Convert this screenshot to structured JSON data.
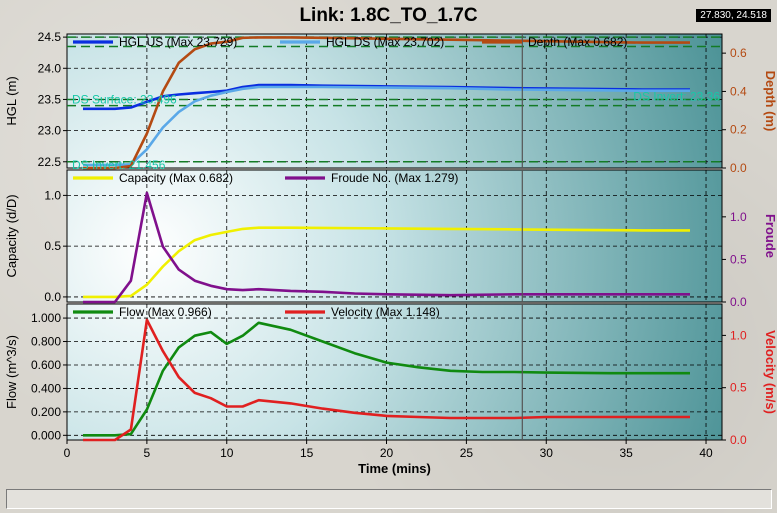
{
  "window": {
    "title": "Link: 1.8C_TO_1.7C",
    "coordinate_readout": "27.830, 24.518"
  },
  "colors": {
    "hgl_us": "#0a2ee0",
    "hgl_ds": "#5aa8e8",
    "depth": "#b44a12",
    "capacity": "#f0f000",
    "froude": "#80108c",
    "flow": "#108a10",
    "velocity": "#e02020",
    "reference": "#137b25",
    "annotation_text": "#18c8a8",
    "cursor": "#555555"
  },
  "chart_data": [
    {
      "type": "line",
      "panel": "top",
      "ylabel": "HGL (m)",
      "y2label": "Depth (m)",
      "ylim": [
        22.4,
        24.55
      ],
      "y2lim": [
        0,
        0.7
      ],
      "yticks": [
        "22.5",
        "23.0",
        "23.5",
        "24.0",
        "24.5"
      ],
      "y2ticks": [
        "0.0",
        "0.2",
        "0.4",
        "0.6"
      ],
      "legend": [
        {
          "key": "hgl_us",
          "label": "HGL US (Max 23.729)"
        },
        {
          "key": "hgl_ds",
          "label": "HGL DS (Max 23.702)"
        },
        {
          "key": "depth",
          "label": "Depth (Max 0.682)"
        }
      ],
      "annotations": [
        {
          "text": "DS Surface: 23.496",
          "side": "left",
          "y": 23.496
        },
        {
          "text": "DS Invert: 21.456",
          "side": "left",
          "y": 22.45
        },
        {
          "text": "DS Invert: 23.36",
          "side": "right",
          "y": 23.55
        }
      ],
      "reference_lines": [
        24.5,
        24.35,
        23.5,
        23.4,
        22.5
      ],
      "series": [
        {
          "key": "hgl_us",
          "axis": "left",
          "x": [
            1,
            3,
            4,
            5,
            6,
            7,
            8,
            9,
            10,
            11,
            12,
            14,
            16,
            20,
            24,
            28,
            32,
            36,
            39
          ],
          "y": [
            23.35,
            23.35,
            23.37,
            23.46,
            23.55,
            23.58,
            23.6,
            23.62,
            23.64,
            23.7,
            23.73,
            23.73,
            23.72,
            23.71,
            23.7,
            23.68,
            23.67,
            23.66,
            23.66
          ]
        },
        {
          "key": "hgl_ds",
          "axis": "left",
          "x": [
            1,
            3,
            4,
            5,
            6,
            7,
            8,
            9,
            10,
            11,
            12,
            14,
            16,
            20,
            24,
            28,
            32,
            36,
            39
          ],
          "y": [
            22.45,
            22.45,
            22.46,
            22.7,
            23.05,
            23.3,
            23.47,
            23.56,
            23.62,
            23.67,
            23.7,
            23.7,
            23.7,
            23.69,
            23.68,
            23.66,
            23.65,
            23.64,
            23.64
          ]
        },
        {
          "key": "depth",
          "axis": "right",
          "x": [
            1,
            3,
            4,
            5,
            6,
            7,
            8,
            9,
            10,
            11,
            12,
            14,
            16,
            20,
            24,
            28,
            32,
            36,
            39
          ],
          "y": [
            0,
            0,
            0.01,
            0.18,
            0.4,
            0.55,
            0.62,
            0.65,
            0.66,
            0.68,
            0.682,
            0.682,
            0.68,
            0.675,
            0.67,
            0.665,
            0.66,
            0.655,
            0.655
          ]
        }
      ]
    },
    {
      "type": "line",
      "panel": "middle",
      "ylabel": "Capacity (d/D)",
      "y2label": "Froude",
      "ylim": [
        -0.05,
        1.25
      ],
      "y2lim": [
        0,
        1.55
      ],
      "yticks": [
        "0.0",
        "0.5",
        "1.0"
      ],
      "y2ticks": [
        "0.0",
        "0.5",
        "1.0"
      ],
      "legend": [
        {
          "key": "capacity",
          "label": "Capacity (Max 0.682)"
        },
        {
          "key": "froude",
          "label": "Froude No. (Max 1.279)"
        }
      ],
      "series": [
        {
          "key": "capacity",
          "axis": "left",
          "x": [
            1,
            3,
            4,
            5,
            6,
            7,
            8,
            9,
            10,
            11,
            12,
            14,
            16,
            20,
            24,
            28,
            32,
            36,
            39
          ],
          "y": [
            0,
            0,
            0.01,
            0.12,
            0.3,
            0.45,
            0.56,
            0.61,
            0.64,
            0.67,
            0.682,
            0.682,
            0.68,
            0.675,
            0.67,
            0.665,
            0.66,
            0.655,
            0.655
          ]
        },
        {
          "key": "froude",
          "axis": "right",
          "x": [
            1,
            3,
            4,
            5,
            6,
            7,
            8,
            9,
            10,
            11,
            12,
            14,
            16,
            18,
            20,
            24,
            28,
            32,
            36,
            39
          ],
          "y": [
            0,
            0,
            0.25,
            1.28,
            0.65,
            0.38,
            0.25,
            0.19,
            0.15,
            0.14,
            0.15,
            0.13,
            0.12,
            0.1,
            0.09,
            0.08,
            0.09,
            0.09,
            0.09,
            0.09
          ]
        }
      ]
    },
    {
      "type": "line",
      "panel": "bottom",
      "xlabel": "Time (mins)",
      "ylabel": "Flow (m^3/s)",
      "y2label": "Velocity (m/s)",
      "xlim": [
        0,
        41
      ],
      "xticks": [
        "0",
        "5",
        "10",
        "15",
        "20",
        "25",
        "30",
        "35",
        "40"
      ],
      "ylim": [
        -0.04,
        1.12
      ],
      "y2lim": [
        0,
        1.3
      ],
      "yticks": [
        "0.000",
        "0.200",
        "0.400",
        "0.600",
        "0.800",
        "1.000"
      ],
      "y2ticks": [
        "0.0",
        "0.5",
        "1.0"
      ],
      "legend": [
        {
          "key": "flow",
          "label": "Flow (Max 0.966)"
        },
        {
          "key": "velocity",
          "label": "Velocity (Max 1.148)"
        }
      ],
      "cursor_x": 28.5,
      "series": [
        {
          "key": "flow",
          "axis": "left",
          "x": [
            1,
            3,
            4,
            5,
            6,
            7,
            8,
            9,
            10,
            11,
            12,
            14,
            16,
            18,
            20,
            22,
            24,
            26,
            28,
            30,
            34,
            39
          ],
          "y": [
            0,
            0,
            0.01,
            0.22,
            0.55,
            0.75,
            0.85,
            0.88,
            0.78,
            0.85,
            0.96,
            0.9,
            0.8,
            0.7,
            0.62,
            0.58,
            0.55,
            0.54,
            0.54,
            0.535,
            0.53,
            0.53
          ]
        },
        {
          "key": "velocity",
          "axis": "right",
          "x": [
            1,
            3,
            4,
            5,
            6,
            7,
            8,
            9,
            10,
            11,
            12,
            14,
            16,
            18,
            20,
            22,
            24,
            26,
            28,
            30,
            34,
            39
          ],
          "y": [
            0,
            0,
            0.1,
            1.148,
            0.85,
            0.6,
            0.45,
            0.4,
            0.32,
            0.32,
            0.38,
            0.35,
            0.3,
            0.26,
            0.23,
            0.22,
            0.21,
            0.21,
            0.21,
            0.22,
            0.22,
            0.22
          ]
        }
      ]
    }
  ]
}
